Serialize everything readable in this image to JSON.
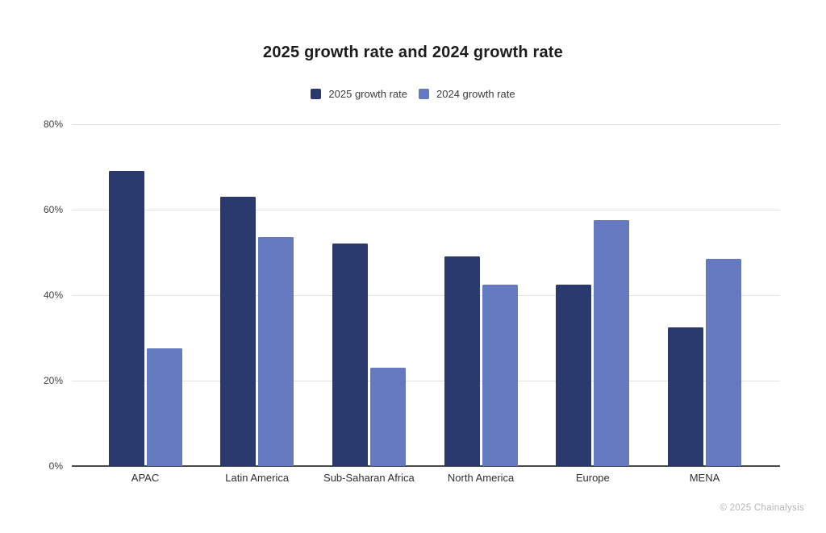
{
  "title": {
    "text": "2025 growth rate and 2024 growth rate"
  },
  "legend": {
    "items": [
      {
        "label": "2025 growth rate",
        "color": "#2B3A6E"
      },
      {
        "label": "2024 growth rate",
        "color": "#6479BF"
      }
    ]
  },
  "axes": {
    "y_tick_labels": [
      "0%",
      "20%",
      "40%",
      "60%",
      "80%"
    ],
    "x_tick_labels": [
      "APAC",
      "Latin America",
      "Sub-Saharan Africa",
      "North America",
      "Europe",
      "MENA"
    ]
  },
  "footer": {
    "copyright": "© 2025 Chainalysis"
  },
  "colors": {
    "series_2025": "#2B3A6E",
    "series_2024": "#6479BF",
    "gridline": "#E4E4E4",
    "axis_line": "#4A4A4A",
    "tick_text": "#3D3D3D",
    "footer_text": "#B6B6B6",
    "background": "#FFFFFF"
  },
  "chart_data": {
    "type": "bar",
    "title": "2025 growth rate and 2024 growth rate",
    "categories": [
      "APAC",
      "Latin America",
      "Sub-Saharan Africa",
      "North America",
      "Europe",
      "MENA"
    ],
    "series": [
      {
        "name": "2025 growth rate",
        "color": "#2B3A6E",
        "values": [
          69,
          63,
          52,
          49,
          42.5,
          32.5
        ]
      },
      {
        "name": "2024 growth rate",
        "color": "#6479BF",
        "values": [
          27.5,
          53.5,
          23,
          42.5,
          57.5,
          48.5
        ]
      }
    ],
    "xlabel": "",
    "ylabel": "",
    "ylim": [
      0,
      80
    ],
    "y_tick_step": 20,
    "y_tick_format": "percent",
    "grid": true,
    "legend_position": "top",
    "bar_unit": "percent"
  }
}
